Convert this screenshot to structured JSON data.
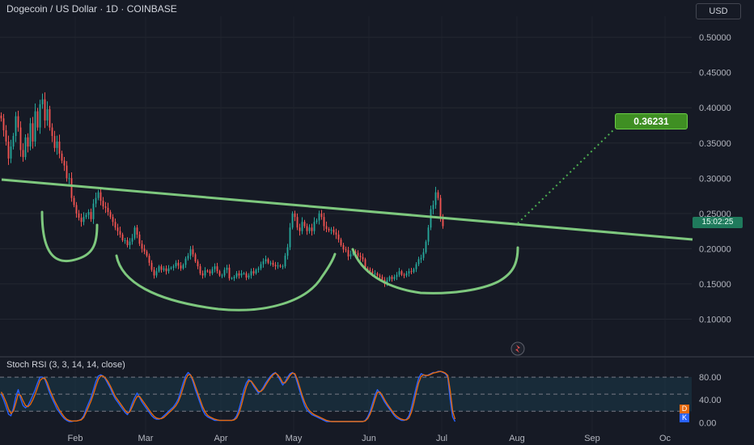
{
  "header": {
    "title": "Dogecoin / US Dollar · 1D · COINBASE",
    "currency": "USD"
  },
  "annotations": {
    "target_label": "0.36231",
    "countdown": "15:02:25"
  },
  "rsi": {
    "title": "Stoch RSI (3, 3, 14, 14, close)",
    "d_badge": "D",
    "k_badge": "K"
  },
  "colors": {
    "bull": "#26a69a",
    "bear": "#ef5350",
    "trendline": "#7ec87e",
    "k_line": "#2962ff",
    "d_line": "#e4690e",
    "band_fill": "#1c3a4a"
  },
  "chart_data": [
    {
      "type": "candlestick",
      "ylim": [
        0.05,
        0.53
      ],
      "y_ticks": [
        0.1,
        0.15,
        0.2,
        0.25,
        0.3,
        0.35,
        0.4,
        0.45,
        0.5
      ],
      "y_tick_labels": [
        "0.10000",
        "0.15000",
        "0.20000",
        "0.25000",
        "0.30000",
        "0.35000",
        "0.40000",
        "0.45000",
        "0.50000"
      ],
      "x_labels": [
        "Feb",
        "Mar",
        "Apr",
        "May",
        "Jun",
        "Jul",
        "Aug",
        "Sep",
        "Oc"
      ],
      "x_label_days": [
        31,
        60,
        91,
        121,
        152,
        182,
        213,
        244,
        274
      ],
      "x_day_range": [
        0,
        285
      ],
      "close": [
        0.385,
        0.368,
        0.352,
        0.328,
        0.345,
        0.36,
        0.388,
        0.372,
        0.34,
        0.33,
        0.358,
        0.345,
        0.378,
        0.352,
        0.395,
        0.372,
        0.405,
        0.412,
        0.382,
        0.398,
        0.372,
        0.36,
        0.343,
        0.352,
        0.335,
        0.325,
        0.318,
        0.3,
        0.3,
        0.272,
        0.262,
        0.25,
        0.244,
        0.238,
        0.245,
        0.248,
        0.252,
        0.242,
        0.264,
        0.272,
        0.28,
        0.268,
        0.26,
        0.258,
        0.252,
        0.245,
        0.238,
        0.23,
        0.225,
        0.22,
        0.212,
        0.212,
        0.205,
        0.21,
        0.215,
        0.23,
        0.22,
        0.207,
        0.2,
        0.196,
        0.19,
        0.18,
        0.17,
        0.162,
        0.168,
        0.175,
        0.17,
        0.172,
        0.168,
        0.172,
        0.173,
        0.175,
        0.18,
        0.176,
        0.172,
        0.177,
        0.186,
        0.19,
        0.199,
        0.192,
        0.182,
        0.175,
        0.165,
        0.162,
        0.169,
        0.168,
        0.165,
        0.171,
        0.175,
        0.168,
        0.162,
        0.162,
        0.17,
        0.173,
        0.158,
        0.158,
        0.16,
        0.165,
        0.162,
        0.165,
        0.165,
        0.159,
        0.162,
        0.168,
        0.165,
        0.17,
        0.172,
        0.178,
        0.182,
        0.185,
        0.18,
        0.18,
        0.177,
        0.175,
        0.176,
        0.175,
        0.175,
        0.19,
        0.202,
        0.23,
        0.25,
        0.245,
        0.23,
        0.225,
        0.238,
        0.232,
        0.225,
        0.23,
        0.225,
        0.238,
        0.24,
        0.25,
        0.245,
        0.232,
        0.228,
        0.226,
        0.227,
        0.223,
        0.22,
        0.213,
        0.205,
        0.199,
        0.198,
        0.189,
        0.192,
        0.196,
        0.194,
        0.19,
        0.188,
        0.185,
        0.172,
        0.17,
        0.168,
        0.165,
        0.165,
        0.162,
        0.16,
        0.156,
        0.15,
        0.155,
        0.16,
        0.157,
        0.16,
        0.163,
        0.168,
        0.163,
        0.162,
        0.165,
        0.168,
        0.167,
        0.171,
        0.178,
        0.185,
        0.187,
        0.195,
        0.21,
        0.23,
        0.256,
        0.262,
        0.28,
        0.272,
        0.244,
        0.232
      ]
    },
    {
      "type": "line",
      "title": "Stoch RSI (3, 3, 14, 14, close)",
      "ylim": [
        -8,
        100
      ],
      "y_ticks": [
        0,
        20,
        40,
        80
      ],
      "y_tick_labels": [
        "0.00",
        "",
        "40.00",
        "80.00"
      ],
      "band": [
        20,
        80
      ],
      "series": [
        {
          "name": "K",
          "values": [
            50,
            40,
            28,
            15,
            12,
            25,
            45,
            58,
            42,
            30,
            26,
            30,
            38,
            48,
            58,
            70,
            80,
            80,
            76,
            64,
            52,
            42,
            33,
            24,
            18,
            12,
            7,
            4,
            2,
            2,
            3,
            3,
            4,
            6,
            12,
            24,
            34,
            44,
            58,
            72,
            82,
            84,
            82,
            76,
            68,
            60,
            50,
            42,
            36,
            30,
            24,
            18,
            14,
            22,
            34,
            44,
            52,
            44,
            36,
            30,
            24,
            18,
            12,
            8,
            6,
            6,
            8,
            12,
            16,
            20,
            24,
            28,
            34,
            42,
            56,
            70,
            82,
            88,
            84,
            72,
            58,
            46,
            34,
            22,
            14,
            10,
            8,
            6,
            4,
            4,
            4,
            4,
            4,
            4,
            4,
            4,
            6,
            12,
            24,
            40,
            58,
            70,
            76,
            72,
            64,
            58,
            52,
            56,
            62,
            70,
            76,
            82,
            86,
            88,
            82,
            74,
            66,
            72,
            80,
            86,
            88,
            84,
            70,
            56,
            42,
            30,
            22,
            18,
            14,
            12,
            10,
            8,
            6,
            4,
            2,
            2,
            2,
            2,
            2,
            2,
            2,
            2,
            2,
            2,
            2,
            2,
            2,
            2,
            2,
            2,
            4,
            10,
            20,
            34,
            48,
            58,
            52,
            44,
            36,
            30,
            24,
            18,
            12,
            8,
            6,
            4,
            4,
            6,
            12,
            26,
            44,
            62,
            78,
            86,
            84,
            82,
            84,
            86,
            88,
            88,
            90,
            90,
            88,
            86,
            80,
            40,
            10,
            2
          ]
        },
        {
          "name": "D",
          "values": [
            54,
            46,
            36,
            24,
            16,
            20,
            34,
            50,
            48,
            38,
            30,
            28,
            32,
            40,
            50,
            62,
            74,
            78,
            78,
            70,
            58,
            48,
            38,
            30,
            22,
            16,
            10,
            6,
            4,
            3,
            3,
            3,
            4,
            5,
            9,
            18,
            28,
            38,
            50,
            64,
            76,
            82,
            82,
            78,
            72,
            64,
            55,
            46,
            40,
            34,
            28,
            22,
            17,
            19,
            28,
            38,
            46,
            46,
            40,
            34,
            28,
            22,
            16,
            11,
            8,
            7,
            7,
            9,
            13,
            17,
            21,
            25,
            30,
            37,
            48,
            62,
            76,
            84,
            84,
            76,
            64,
            52,
            40,
            28,
            19,
            13,
            10,
            8,
            6,
            5,
            4,
            4,
            4,
            4,
            4,
            4,
            5,
            8,
            17,
            31,
            48,
            63,
            73,
            73,
            67,
            61,
            55,
            55,
            59,
            66,
            73,
            79,
            84,
            87,
            84,
            78,
            70,
            70,
            76,
            83,
            87,
            86,
            76,
            62,
            48,
            36,
            27,
            21,
            17,
            14,
            12,
            10,
            8,
            6,
            4,
            3,
            2,
            2,
            2,
            2,
            2,
            2,
            2,
            2,
            2,
            2,
            2,
            2,
            2,
            2,
            3,
            7,
            15,
            27,
            41,
            53,
            54,
            48,
            40,
            33,
            27,
            21,
            15,
            11,
            8,
            6,
            5,
            5,
            8,
            18,
            34,
            53,
            70,
            81,
            84,
            83,
            83,
            85,
            87,
            88,
            89,
            90,
            89,
            87,
            83,
            56,
            20,
            6
          ]
        }
      ]
    }
  ]
}
